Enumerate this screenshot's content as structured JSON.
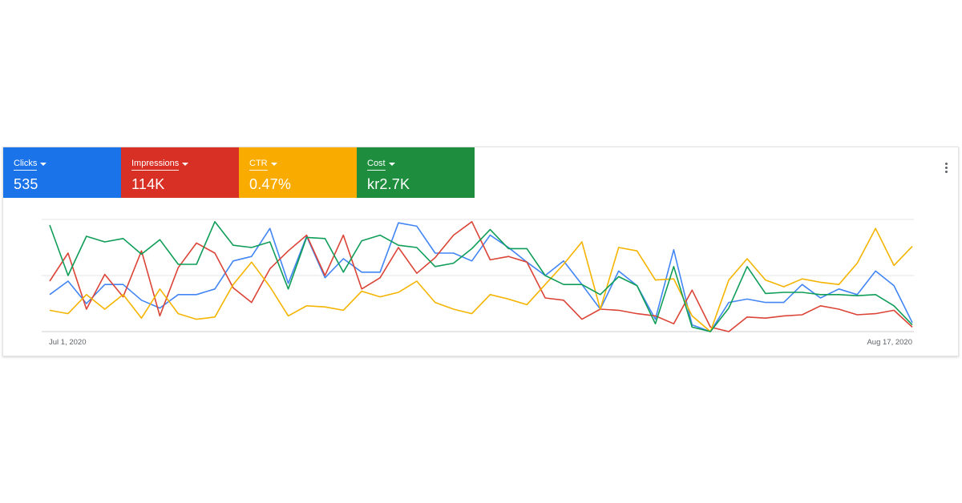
{
  "tiles": [
    {
      "label": "Clicks",
      "value": "535",
      "color": "#1a73e8"
    },
    {
      "label": "Impressions",
      "value": "114K",
      "color": "#d93025"
    },
    {
      "label": "CTR",
      "value": "0.47%",
      "color": "#f9ab00"
    },
    {
      "label": "Cost",
      "value": "kr2.7K",
      "color": "#1e8e3e"
    }
  ],
  "menu_icon": "more-vert-icon",
  "chart_data": {
    "type": "line",
    "x_tick_labels": [
      "Jul 1, 2020",
      "Aug 17, 2020"
    ],
    "ylim": [
      0,
      100
    ],
    "grid": true,
    "series": [
      {
        "name": "Clicks",
        "color": "#4285f4",
        "values": [
          33,
          45,
          25,
          42,
          42,
          28,
          21,
          33,
          33,
          38,
          63,
          67,
          92,
          43,
          85,
          48,
          65,
          53,
          53,
          97,
          94,
          70,
          70,
          63,
          86,
          75,
          62,
          50,
          63,
          42,
          20,
          54,
          41,
          11,
          73,
          6,
          0,
          26,
          29,
          26,
          26,
          42,
          30,
          38,
          33,
          54,
          41,
          8
        ]
      },
      {
        "name": "Impressions",
        "color": "#db4437",
        "values": [
          45,
          70,
          20,
          51,
          31,
          72,
          14,
          57,
          79,
          70,
          39,
          26,
          56,
          72,
          86,
          50,
          86,
          38,
          48,
          75,
          52,
          66,
          86,
          98,
          64,
          67,
          62,
          30,
          28,
          11,
          20,
          19,
          16,
          14,
          7,
          37,
          4,
          0,
          13,
          12,
          14,
          15,
          23,
          20,
          15,
          16,
          19,
          4
        ]
      },
      {
        "name": "CTR",
        "color": "#f4b400",
        "values": [
          19,
          16,
          33,
          20,
          33,
          12,
          38,
          16,
          11,
          13,
          42,
          62,
          40,
          14,
          23,
          22,
          19,
          36,
          31,
          35,
          45,
          26,
          20,
          16,
          33,
          29,
          24,
          42,
          60,
          80,
          20,
          75,
          72,
          46,
          47,
          14,
          0,
          46,
          65,
          46,
          40,
          47,
          44,
          42,
          61,
          92,
          59,
          76
        ]
      },
      {
        "name": "Cost",
        "color": "#0f9d58",
        "values": [
          95,
          50,
          85,
          80,
          83,
          69,
          82,
          60,
          60,
          98,
          77,
          75,
          80,
          38,
          84,
          83,
          53,
          81,
          86,
          77,
          75,
          58,
          61,
          74,
          91,
          74,
          74,
          50,
          42,
          42,
          33,
          49,
          41,
          7,
          58,
          4,
          0,
          21,
          58,
          34,
          35,
          35,
          33,
          33,
          32,
          33,
          23,
          6
        ]
      }
    ]
  }
}
